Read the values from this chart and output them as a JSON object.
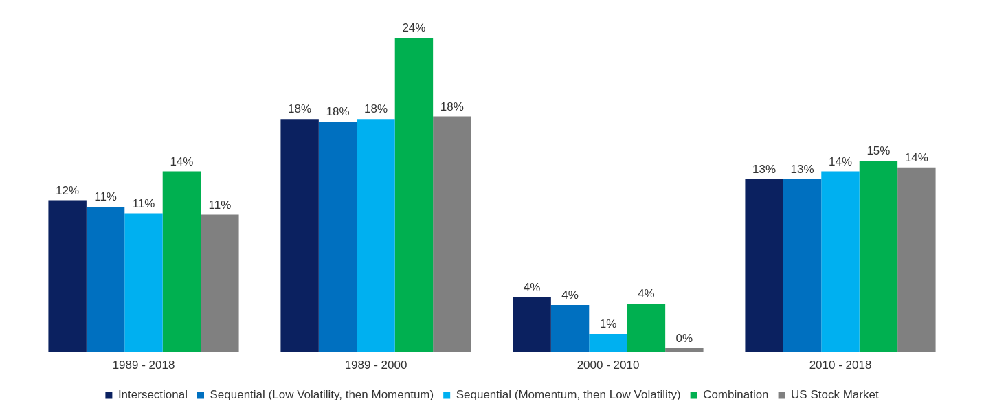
{
  "chart_data": {
    "type": "bar",
    "categories": [
      "1989 - 2018",
      "1989 - 2000",
      "2000 - 2010",
      "2010 - 2018"
    ],
    "series": [
      {
        "name": "Intersectional",
        "color": "#0b2160",
        "values": [
          11.6,
          17.8,
          4.2,
          13.2
        ],
        "value_labels": [
          "12%",
          "18%",
          "4%",
          "13%"
        ]
      },
      {
        "name": "Sequential (Low Volatility, then Momentum)",
        "color": "#0070c0",
        "values": [
          11.1,
          17.6,
          3.6,
          13.2
        ],
        "value_labels": [
          "11%",
          "18%",
          "4%",
          "13%"
        ]
      },
      {
        "name": "Sequential (Momentum, then Low Volatility)",
        "color": "#00b0f0",
        "values": [
          10.6,
          17.8,
          1.4,
          13.8
        ],
        "value_labels": [
          "11%",
          "18%",
          "1%",
          "14%"
        ]
      },
      {
        "name": "Combination",
        "color": "#00b050",
        "values": [
          13.8,
          24.0,
          3.7,
          14.6
        ],
        "value_labels": [
          "14%",
          "24%",
          "4%",
          "15%"
        ]
      },
      {
        "name": "US Stock Market",
        "color": "#808080",
        "values": [
          10.5,
          18.0,
          0.3,
          14.1
        ],
        "value_labels": [
          "11%",
          "18%",
          "0%",
          "14%"
        ]
      }
    ],
    "legend": "bottom",
    "grid": false
  }
}
